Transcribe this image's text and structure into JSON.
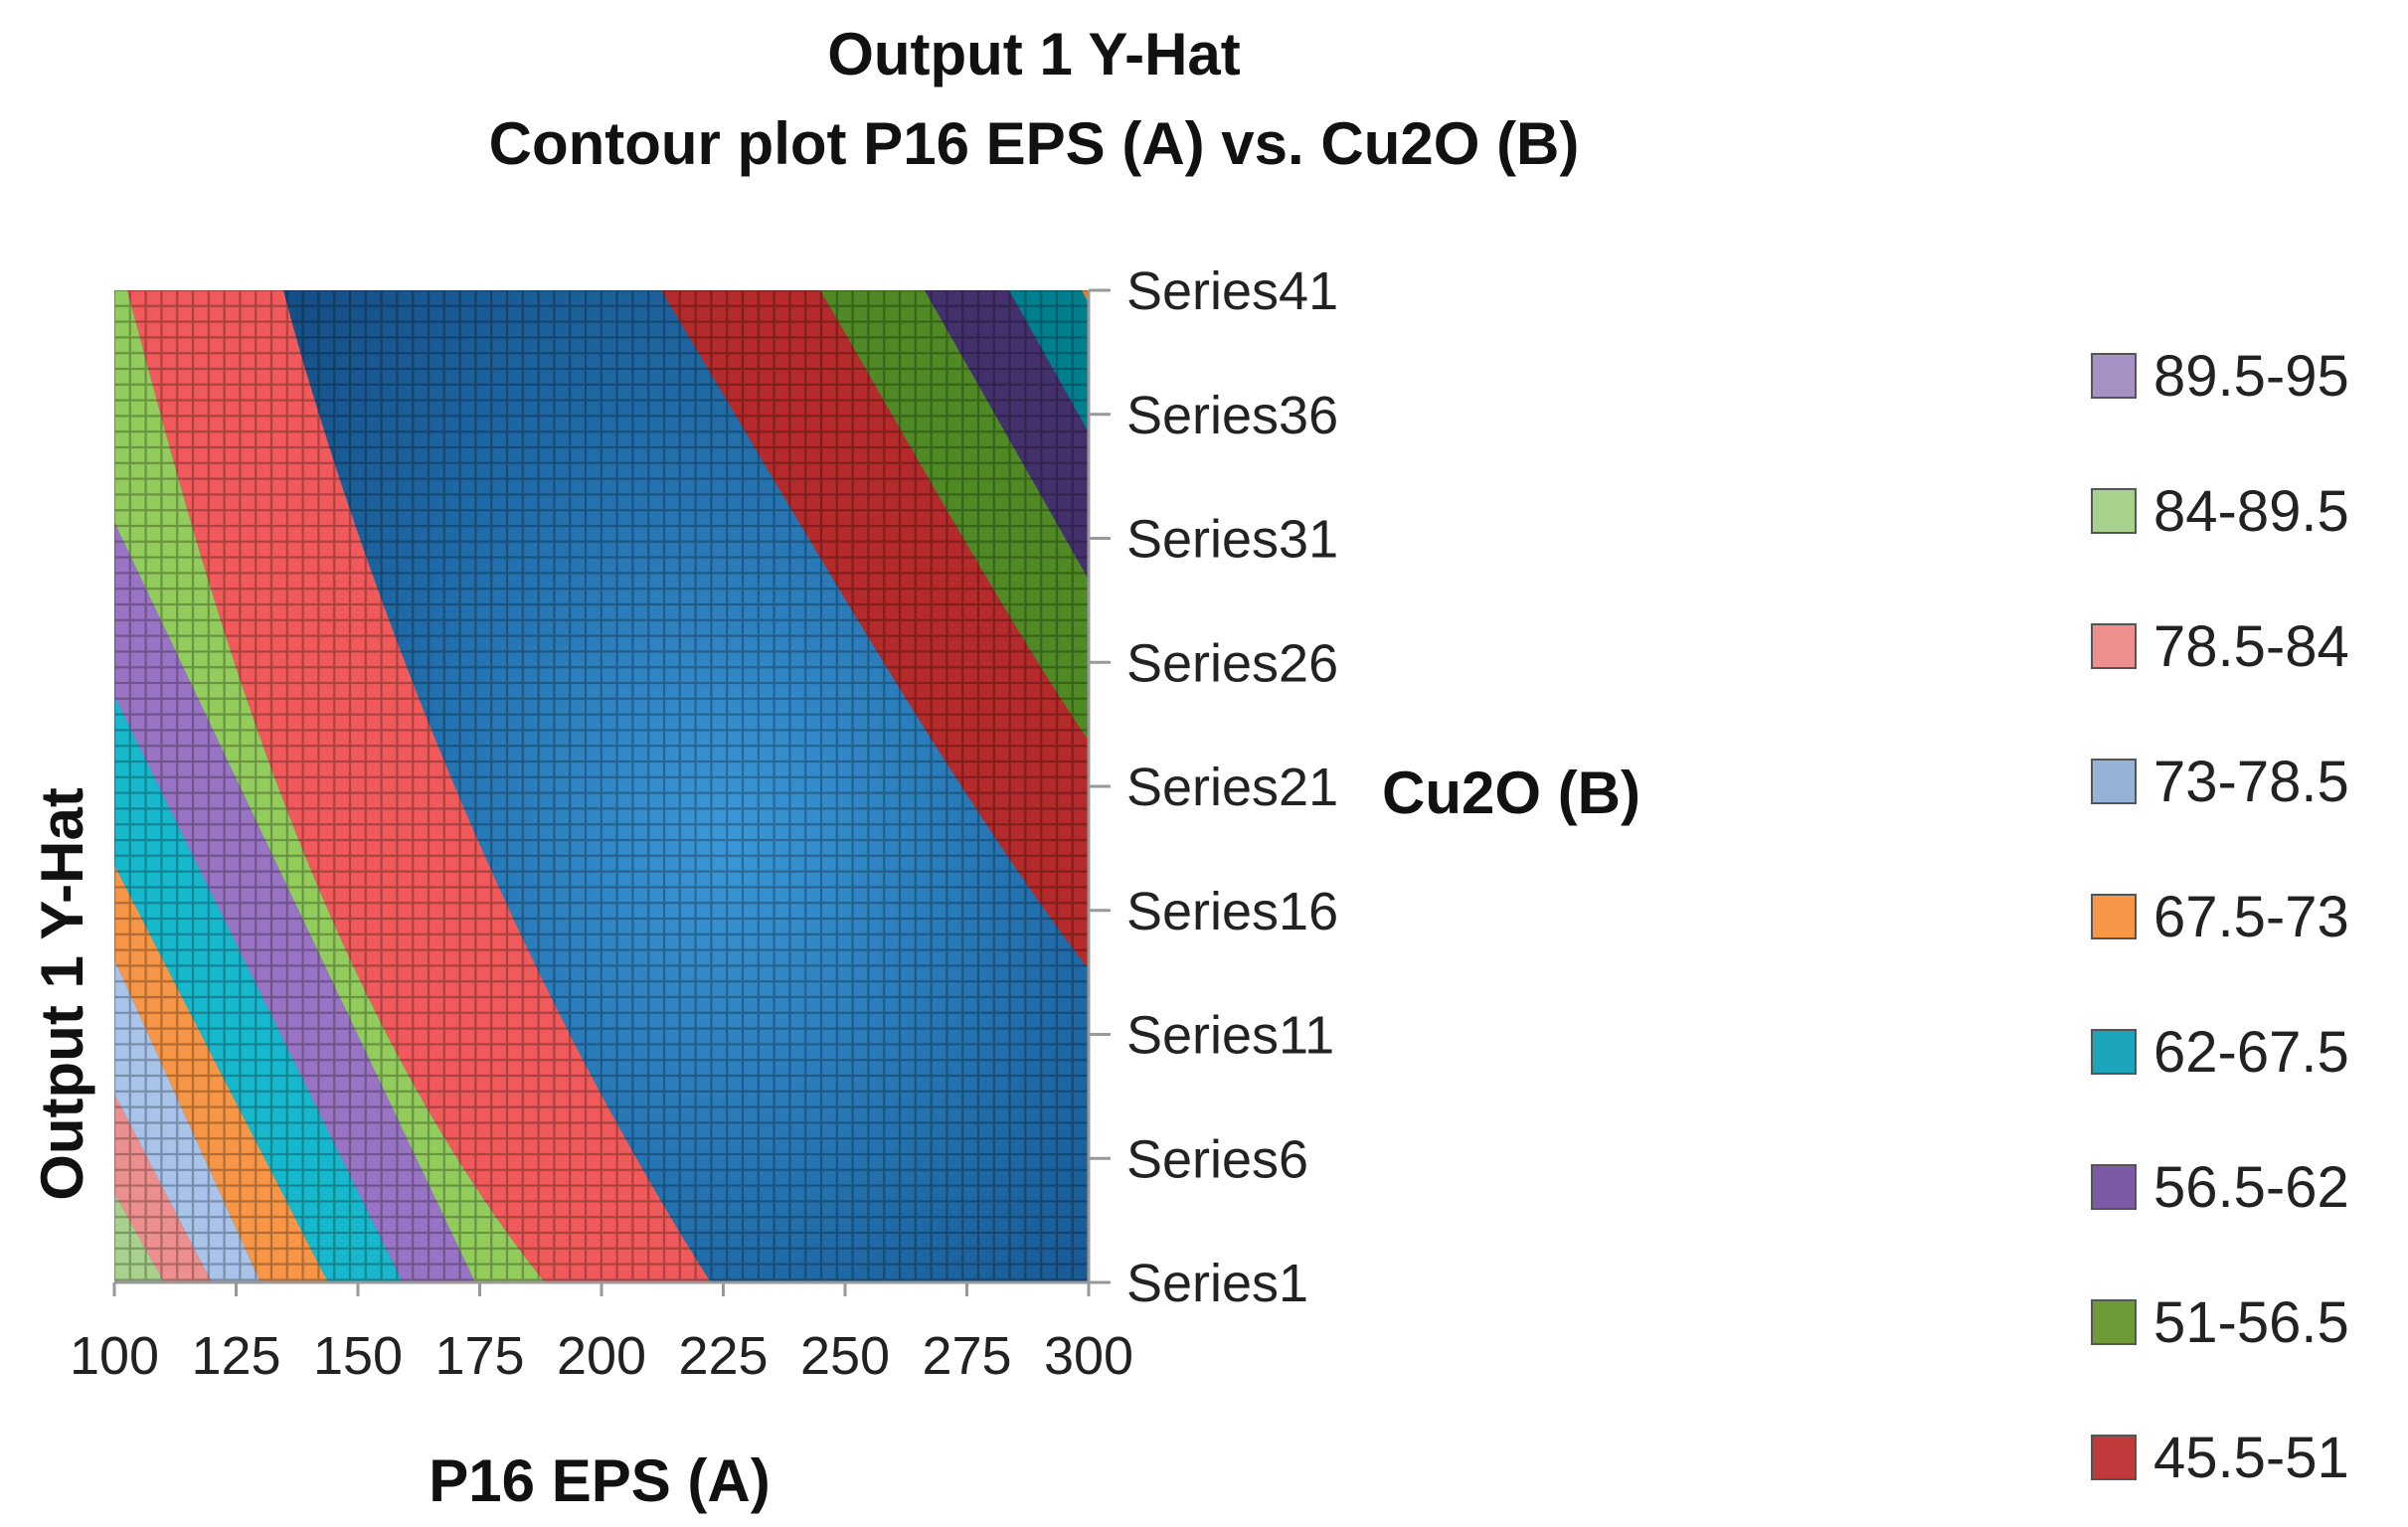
{
  "chart_data": {
    "type": "contour",
    "title": "Output 1 Y-Hat",
    "subtitle": "Contour plot P16 EPS (A) vs. Cu2O (B)",
    "xlabel": "P16 EPS (A)",
    "ylabel": "Output 1 Y-Hat",
    "y2label": "Cu2O (B)",
    "x_ticks": [
      "100",
      "125",
      "150",
      "175",
      "200",
      "225",
      "250",
      "275",
      "300"
    ],
    "xlim": [
      100,
      300
    ],
    "series_ticks": [
      "Series1",
      "Series6",
      "Series11",
      "Series16",
      "Series21",
      "Series26",
      "Series31",
      "Series36",
      "Series41"
    ],
    "series_range": [
      1,
      41
    ],
    "legend_position": "right",
    "bands": [
      {
        "label": "89.5-95",
        "color": "#a692c4"
      },
      {
        "label": "84-89.5",
        "color": "#a9d18e"
      },
      {
        "label": "78.5-84",
        "color": "#ee8f8f"
      },
      {
        "label": "73-78.5",
        "color": "#95b3d7"
      },
      {
        "label": "67.5-73",
        "color": "#f79646"
      },
      {
        "label": "62-67.5",
        "color": "#1aa5bd"
      },
      {
        "label": "56.5-62",
        "color": "#7d5aa6"
      },
      {
        "label": "51-56.5",
        "color": "#6e9a37"
      },
      {
        "label": "45.5-51",
        "color": "#c0393b"
      }
    ],
    "plot_regions": [
      {
        "label": "84-89.5",
        "color": "#a9d18e"
      },
      {
        "label": "78.5-84",
        "color": "#ee8f8f"
      },
      {
        "label": "73-78.5",
        "color": "#a8c4ea"
      },
      {
        "label": "67.5-73",
        "color": "#f79646"
      },
      {
        "label": "62-67.5",
        "color": "#18b8cc"
      },
      {
        "label": "56.5-62",
        "color": "#9a74c4"
      },
      {
        "label": "84-89.5",
        "color": "#92cc5c"
      },
      {
        "label": "78.5-84",
        "color": "#f05a5a"
      },
      {
        "label": "73-78.5",
        "color": "#2f87c4"
      },
      {
        "label": "45.5-51",
        "color": "#b52a2a"
      },
      {
        "label": "51-56.5",
        "color": "#4f8a24"
      },
      {
        "label": "56.5-62",
        "color": "#45306e"
      },
      {
        "label": "62-67.5",
        "color": "#007f8f"
      },
      {
        "label": "67.5-73",
        "color": "#e87c2a"
      }
    ]
  }
}
